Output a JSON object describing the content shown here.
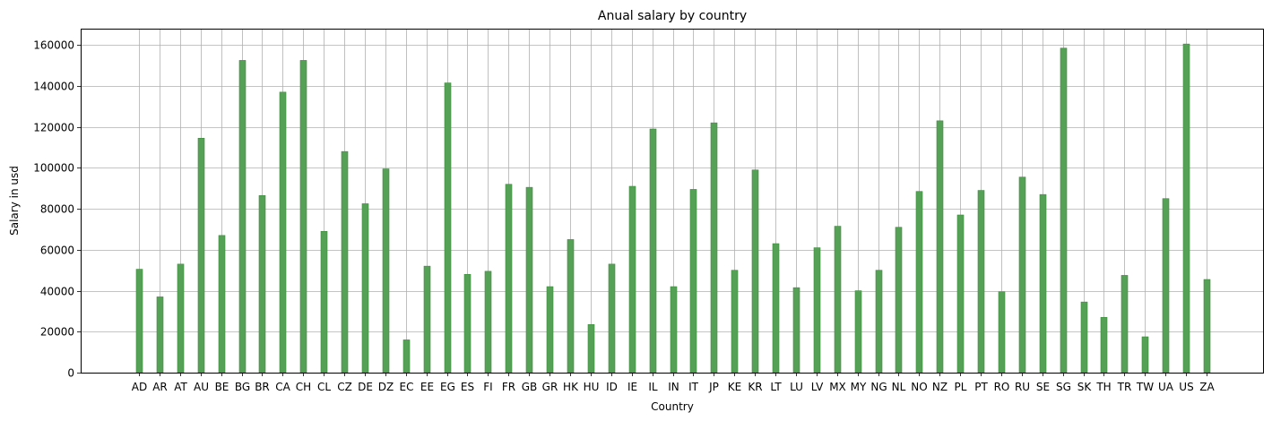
{
  "chart_data": {
    "type": "bar",
    "title": "Anual salary by country",
    "xlabel": "Country",
    "ylabel": "Salary in usd",
    "ylim": [
      0,
      168000
    ],
    "yticks": [
      0,
      20000,
      40000,
      60000,
      80000,
      100000,
      120000,
      140000,
      160000
    ],
    "grid": true,
    "bar_color": "#55a155",
    "categories": [
      "AD",
      "AR",
      "AT",
      "AU",
      "BE",
      "BG",
      "BR",
      "CA",
      "CH",
      "CL",
      "CZ",
      "DE",
      "DZ",
      "EC",
      "EE",
      "EG",
      "ES",
      "FI",
      "FR",
      "GB",
      "GR",
      "HK",
      "HU",
      "ID",
      "IE",
      "IL",
      "IN",
      "IT",
      "JP",
      "KE",
      "KR",
      "LT",
      "LU",
      "LV",
      "MX",
      "MY",
      "NG",
      "NL",
      "NO",
      "NZ",
      "PL",
      "PT",
      "RO",
      "RU",
      "SE",
      "SG",
      "SK",
      "TH",
      "TR",
      "TW",
      "UA",
      "US",
      "ZA"
    ],
    "values": [
      50500,
      37000,
      53000,
      114500,
      67000,
      152500,
      86500,
      137000,
      152500,
      69000,
      108000,
      82500,
      99500,
      16000,
      52000,
      141500,
      48000,
      49500,
      92000,
      90500,
      42000,
      65000,
      23500,
      53000,
      91000,
      119000,
      42000,
      89500,
      122000,
      50000,
      99000,
      63000,
      41500,
      61000,
      71500,
      40000,
      50000,
      71000,
      88500,
      123000,
      77000,
      89000,
      39500,
      95500,
      87000,
      158500,
      34500,
      27000,
      47500,
      17500,
      85000,
      160500,
      45500
    ]
  }
}
